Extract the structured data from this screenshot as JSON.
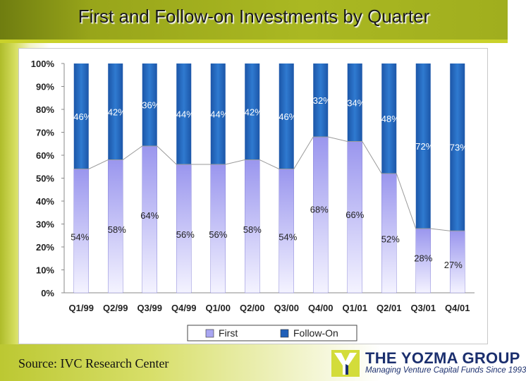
{
  "title": "First and Follow-on Investments by Quarter",
  "source": "Source: IVC Research Center",
  "logo": {
    "name": "THE YOZMA GROUP",
    "tagline": "Managing Venture Capital Funds Since 1993"
  },
  "colors": {
    "first": "#a9a6f2",
    "follow_on": "#1f5fb8",
    "title_bar": "#a6b422"
  },
  "chart_data": {
    "type": "bar",
    "stacked": true,
    "title": "First and Follow-on Investments by Quarter",
    "categories": [
      "Q1/99",
      "Q2/99",
      "Q3/99",
      "Q4/99",
      "Q1/00",
      "Q2/00",
      "Q3/00",
      "Q4/00",
      "Q1/01",
      "Q2/01",
      "Q3/01",
      "Q4/01"
    ],
    "series": [
      {
        "name": "First",
        "values": [
          54,
          58,
          64,
          56,
          56,
          58,
          54,
          68,
          66,
          52,
          28,
          27
        ],
        "labels": [
          "54%",
          "58%",
          "64%",
          "56%",
          "56%",
          "58%",
          "54%",
          "68%",
          "66%",
          "52%",
          "28%",
          "27%"
        ]
      },
      {
        "name": "Follow-On",
        "values": [
          46,
          42,
          36,
          44,
          44,
          42,
          46,
          32,
          34,
          48,
          72,
          73
        ],
        "labels": [
          "46%",
          "42%",
          "36%",
          "44%",
          "44%",
          "42%",
          "46%",
          "32%",
          "34%",
          "48%",
          "72%",
          "73%"
        ]
      }
    ],
    "y_ticks": [
      "0%",
      "10%",
      "20%",
      "30%",
      "40%",
      "50%",
      "60%",
      "70%",
      "80%",
      "90%",
      "100%"
    ],
    "ylim": [
      0,
      100
    ],
    "xlabel": "",
    "ylabel": "",
    "legend": [
      "First",
      "Follow-On"
    ],
    "legend_position": "bottom",
    "series_lines": true
  }
}
